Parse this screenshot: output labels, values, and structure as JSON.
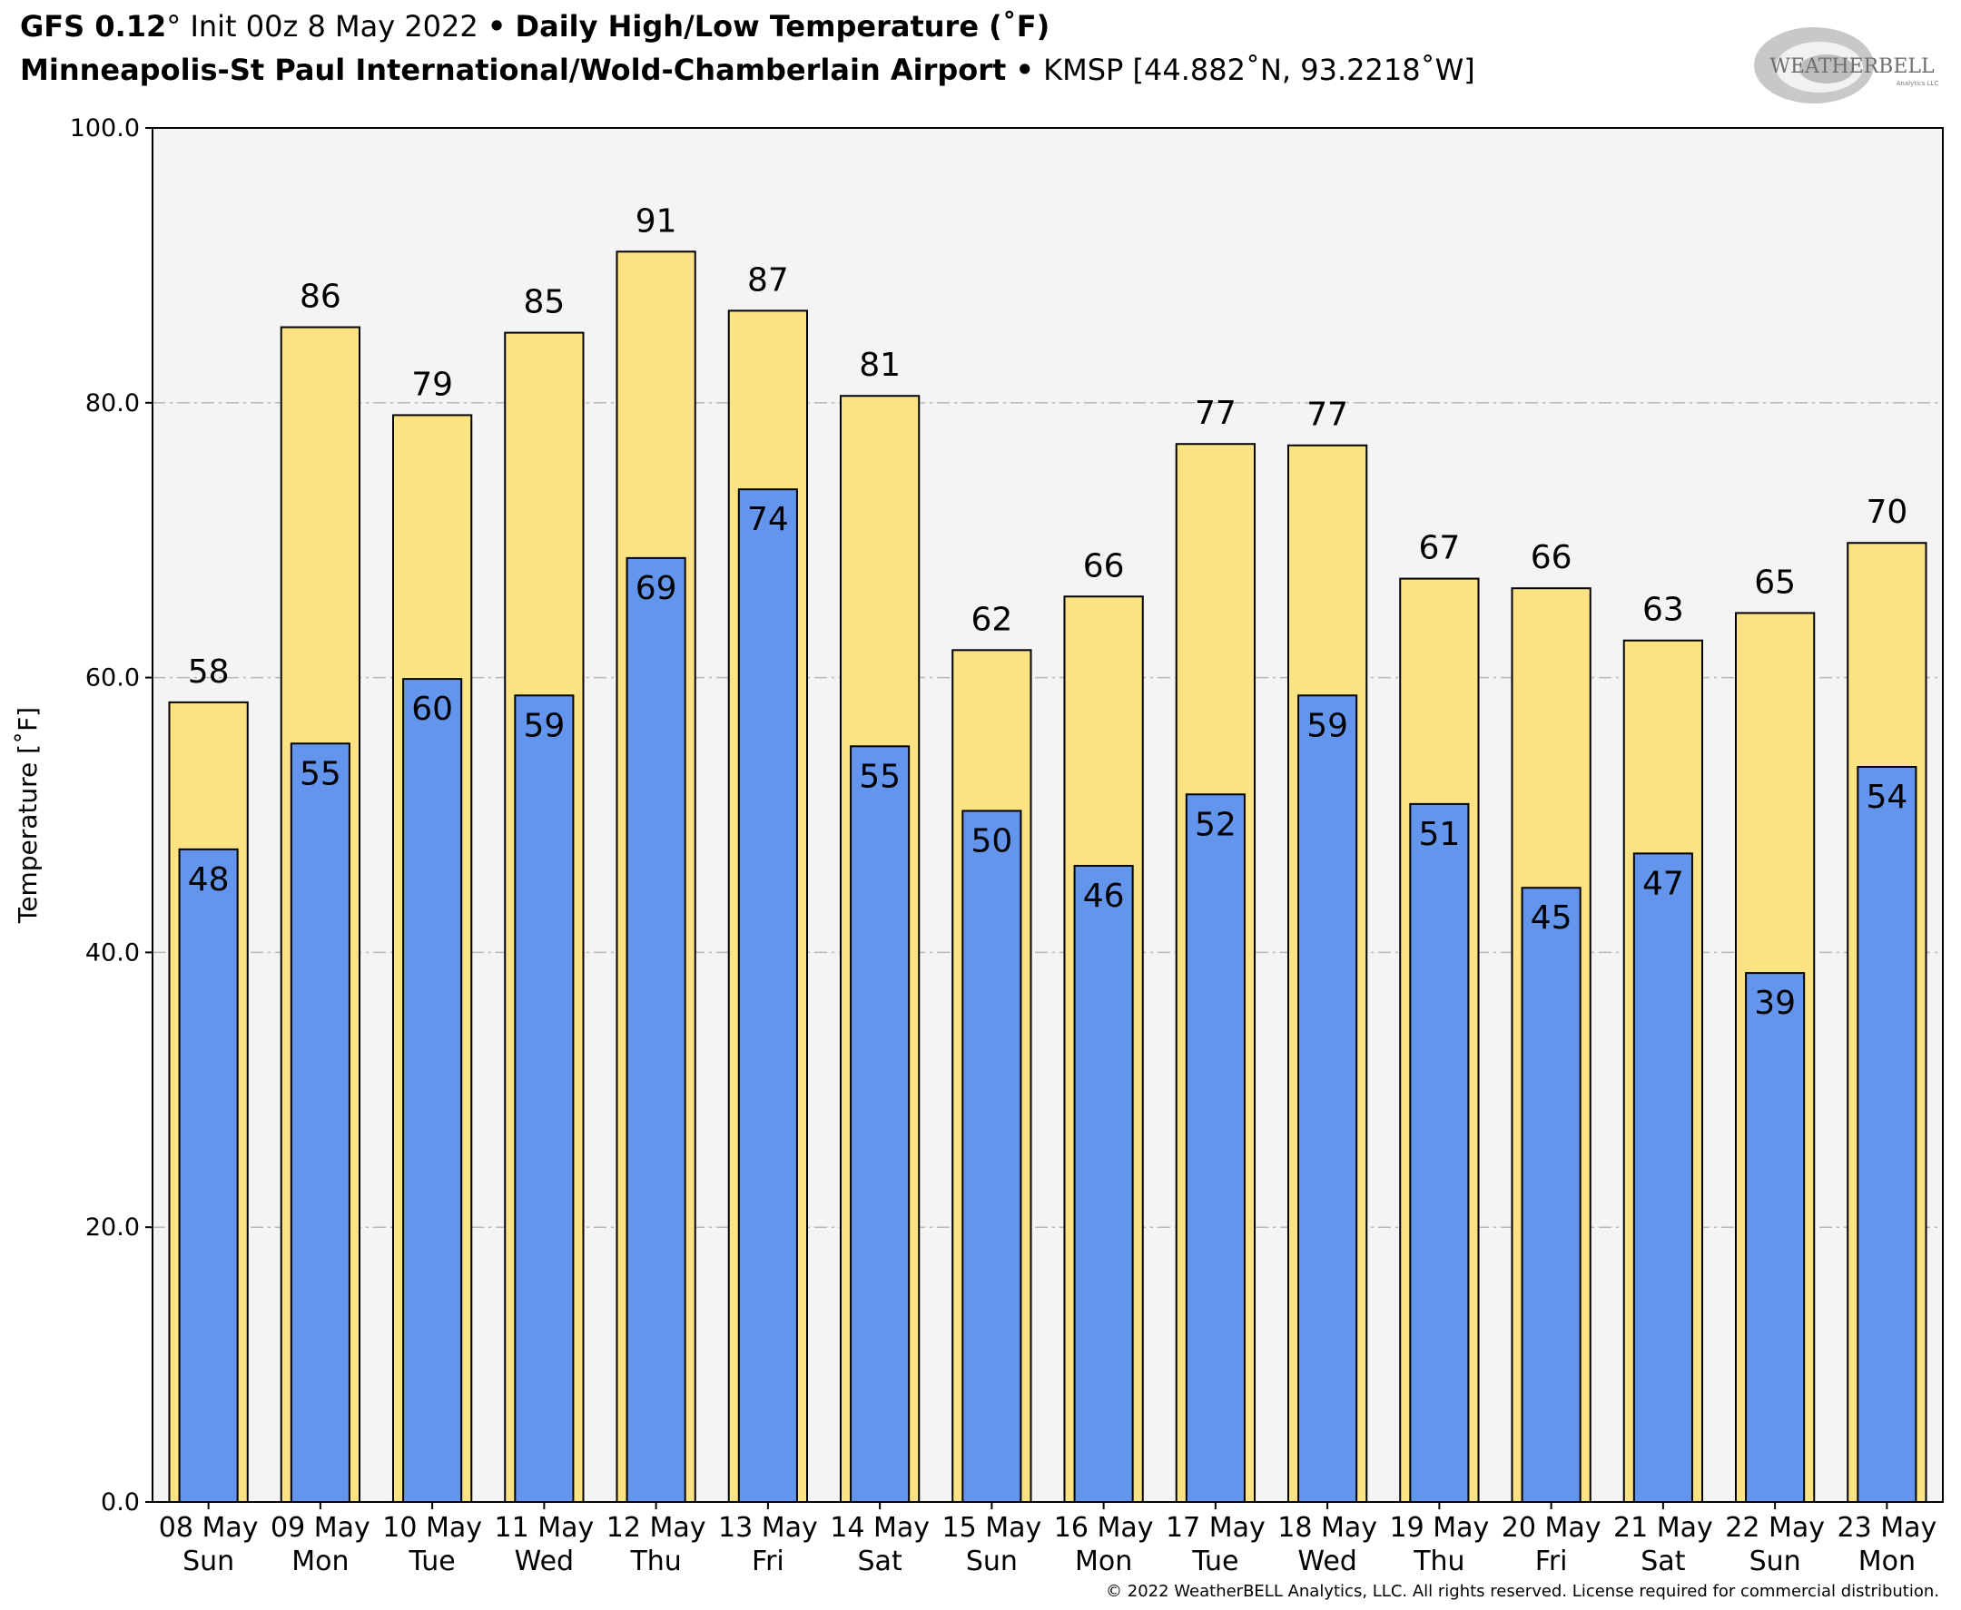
{
  "header": {
    "model": "GFS 0.12",
    "model_degree": "°",
    "init": "Init 00z 8 May 2022",
    "bullet": "•",
    "product": "Daily High/Low Temperature (˚F)",
    "station_name": "Minneapolis-St Paul International/Wold-Chamberlain Airport",
    "station_info": "KMSP [44.882˚N, 93.2218˚W]"
  },
  "logo": {
    "text": "WEATHERBELL",
    "subtext": "Analytics LLC"
  },
  "copyright": "© 2022 WeatherBELL Analytics, LLC. All rights reserved. License required for commercial distribution.",
  "colors": {
    "high_fill": "#FBE282",
    "low_fill": "#6495ED",
    "plot_bg": "#F4F4F4",
    "grid": "#B8B8B8",
    "edge": "#000000"
  },
  "chart_data": {
    "type": "bar",
    "title": "Daily High/Low Temperature (˚F)",
    "ylabel": "Temperature [˚F]",
    "ylim": [
      0,
      100
    ],
    "yticks": [
      "0.0",
      "20.0",
      "40.0",
      "60.0",
      "80.0",
      "100.0"
    ],
    "ytick_values": [
      0,
      20,
      40,
      60,
      80,
      100
    ],
    "grid": true,
    "categories": [
      [
        "08 May",
        "Sun"
      ],
      [
        "09 May",
        "Mon"
      ],
      [
        "10 May",
        "Tue"
      ],
      [
        "11 May",
        "Wed"
      ],
      [
        "12 May",
        "Thu"
      ],
      [
        "13 May",
        "Fri"
      ],
      [
        "14 May",
        "Sat"
      ],
      [
        "15 May",
        "Sun"
      ],
      [
        "16 May",
        "Mon"
      ],
      [
        "17 May",
        "Tue"
      ],
      [
        "18 May",
        "Wed"
      ],
      [
        "19 May",
        "Thu"
      ],
      [
        "20 May",
        "Fri"
      ],
      [
        "21 May",
        "Sat"
      ],
      [
        "22 May",
        "Sun"
      ],
      [
        "23 May",
        "Mon"
      ]
    ],
    "series": [
      {
        "values": [
          58.2,
          85.5,
          79.1,
          85.1,
          91.0,
          86.7,
          80.5,
          62.0,
          65.9,
          77.0,
          76.9,
          67.2,
          66.5,
          62.7,
          64.7,
          69.8
        ],
        "labels": [
          "58",
          "86",
          "79",
          "85",
          "91",
          "87",
          "81",
          "62",
          "66",
          "77",
          "77",
          "67",
          "66",
          "63",
          "65",
          "70"
        ]
      },
      {
        "values": [
          47.5,
          55.2,
          59.9,
          58.7,
          68.7,
          73.7,
          55.0,
          50.3,
          46.3,
          51.5,
          58.7,
          50.8,
          44.7,
          47.2,
          38.5,
          53.5
        ],
        "labels": [
          "48",
          "55",
          "60",
          "59",
          "69",
          "74",
          "55",
          "50",
          "46",
          "52",
          "59",
          "51",
          "45",
          "47",
          "39",
          "54"
        ]
      }
    ]
  }
}
